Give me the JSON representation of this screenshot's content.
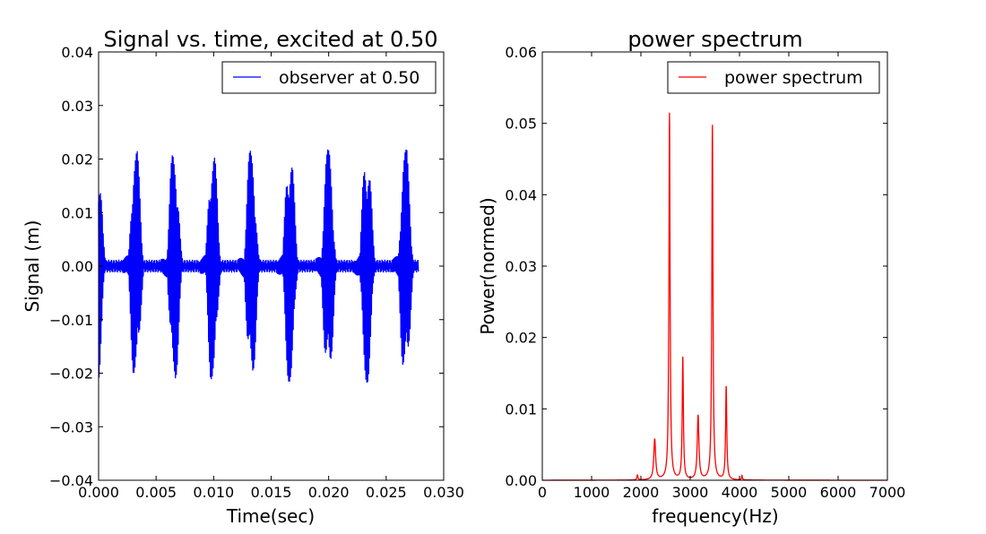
{
  "chart_data": [
    {
      "type": "line",
      "title": "Signal vs. time, excited at 0.50",
      "xlabel": "Time(sec)",
      "ylabel": "Signal (m)",
      "xlim": [
        0.0,
        0.03
      ],
      "ylim": [
        -0.04,
        0.04
      ],
      "xticks": [
        0.0,
        0.005,
        0.01,
        0.015,
        0.02,
        0.025,
        0.03
      ],
      "xtick_labels": [
        "0.000",
        "0.005",
        "0.010",
        "0.015",
        "0.020",
        "0.025",
        "0.030"
      ],
      "yticks": [
        -0.04,
        -0.03,
        -0.02,
        -0.01,
        0.0,
        0.01,
        0.02,
        0.03,
        0.04
      ],
      "ytick_labels": [
        "−0.04",
        "−0.03",
        "−0.02",
        "−0.01",
        "0.00",
        "0.01",
        "0.02",
        "0.03",
        "0.04"
      ],
      "legend_position": "top-right",
      "grid": false,
      "series": [
        {
          "name": "observer at 0.50",
          "color": "#0000ff",
          "x_range": [
            0.0,
            0.0278
          ],
          "approx_period": 0.00335,
          "peak_max": 0.0218,
          "peak_min": -0.0218
        }
      ]
    },
    {
      "type": "line",
      "title": "power spectrum",
      "xlabel": "frequency(Hz)",
      "ylabel": "Power(normed)",
      "xlim": [
        0,
        7000
      ],
      "ylim": [
        0.0,
        0.06
      ],
      "xticks": [
        0,
        1000,
        2000,
        3000,
        4000,
        5000,
        6000,
        7000
      ],
      "xtick_labels": [
        "0",
        "1000",
        "2000",
        "3000",
        "4000",
        "5000",
        "6000",
        "7000"
      ],
      "yticks": [
        0.0,
        0.01,
        0.02,
        0.03,
        0.04,
        0.05,
        0.06
      ],
      "ytick_labels": [
        "0.00",
        "0.01",
        "0.02",
        "0.03",
        "0.04",
        "0.05",
        "0.06"
      ],
      "legend_position": "top-right",
      "grid": false,
      "series": [
        {
          "name": "power spectrum",
          "color": "#ff0000",
          "peaks": [
            {
              "f": 1930,
              "p": 0.0007
            },
            {
              "f": 2280,
              "p": 0.0057
            },
            {
              "f": 2580,
              "p": 0.0514
            },
            {
              "f": 2850,
              "p": 0.0171
            },
            {
              "f": 3160,
              "p": 0.009
            },
            {
              "f": 3450,
              "p": 0.0497
            },
            {
              "f": 3730,
              "p": 0.0131
            },
            {
              "f": 4050,
              "p": 0.0006
            }
          ]
        }
      ]
    }
  ]
}
